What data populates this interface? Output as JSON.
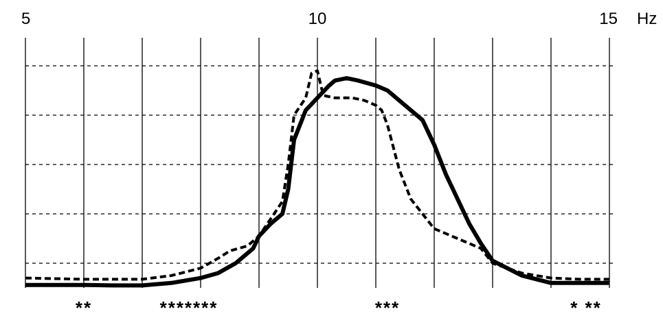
{
  "chart_data": {
    "type": "line",
    "title": "",
    "xlabel": "",
    "ylabel": "",
    "x_unit": "Hz",
    "xlim": [
      5,
      15
    ],
    "ylim": [
      0,
      1
    ],
    "x_tick_labels": [
      {
        "x": 5,
        "label": "5"
      },
      {
        "x": 10,
        "label": "10"
      },
      {
        "x": 15,
        "label": "15"
      }
    ],
    "x_gridlines": [
      5,
      6,
      7,
      8,
      9,
      10,
      11,
      12,
      13,
      14,
      15
    ],
    "y_gridlines_dashed": [
      0.1,
      0.3,
      0.5,
      0.7,
      0.9
    ],
    "grid": true,
    "legend": "none",
    "series": [
      {
        "style": "solid",
        "color": "#000000",
        "x": [
          5.0,
          5.5,
          6.0,
          6.5,
          7.0,
          7.5,
          8.0,
          8.3,
          8.6,
          8.9,
          9.0,
          9.2,
          9.4,
          9.5,
          9.6,
          9.8,
          10.0,
          10.2,
          10.3,
          10.5,
          10.7,
          11.0,
          11.2,
          11.4,
          11.6,
          11.8,
          12.0,
          12.2,
          12.4,
          12.6,
          12.8,
          13.0,
          13.5,
          14.0,
          14.5,
          15.0
        ],
        "values": [
          0.012,
          0.012,
          0.012,
          0.01,
          0.01,
          0.02,
          0.04,
          0.06,
          0.1,
          0.16,
          0.21,
          0.26,
          0.3,
          0.4,
          0.6,
          0.72,
          0.77,
          0.82,
          0.84,
          0.85,
          0.84,
          0.82,
          0.8,
          0.76,
          0.72,
          0.68,
          0.58,
          0.46,
          0.36,
          0.26,
          0.18,
          0.11,
          0.05,
          0.02,
          0.02,
          0.02
        ]
      },
      {
        "style": "dashed",
        "color": "#000000",
        "x": [
          5.0,
          6.0,
          7.0,
          7.5,
          8.0,
          8.3,
          8.5,
          8.8,
          9.0,
          9.2,
          9.4,
          9.5,
          9.6,
          9.8,
          9.9,
          10.0,
          10.1,
          10.3,
          10.6,
          10.8,
          11.0,
          11.1,
          11.2,
          11.4,
          11.6,
          11.8,
          12.0,
          12.4,
          12.8,
          13.0,
          13.5,
          14.0,
          14.5,
          15.0
        ],
        "values": [
          0.04,
          0.035,
          0.035,
          0.05,
          0.08,
          0.12,
          0.15,
          0.17,
          0.21,
          0.28,
          0.35,
          0.5,
          0.7,
          0.77,
          0.87,
          0.88,
          0.78,
          0.77,
          0.77,
          0.76,
          0.74,
          0.72,
          0.66,
          0.48,
          0.36,
          0.3,
          0.24,
          0.2,
          0.16,
          0.1,
          0.06,
          0.04,
          0.035,
          0.035
        ]
      }
    ],
    "significance_rows": [
      {
        "x": 6.0,
        "label": "**"
      },
      {
        "x": 7.8,
        "label": "*******"
      },
      {
        "x": 11.2,
        "label": "***"
      },
      {
        "x": 14.6,
        "label": "*  **"
      }
    ]
  }
}
